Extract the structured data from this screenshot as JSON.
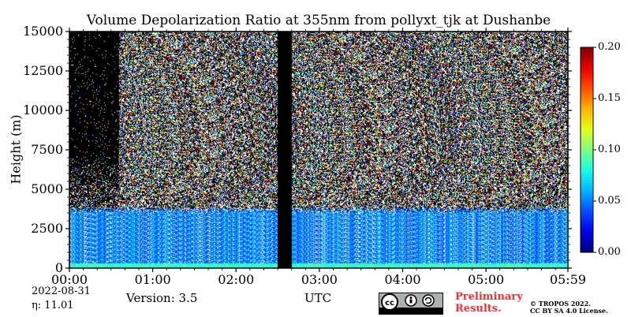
{
  "chart_data": {
    "type": "heatmap",
    "title": "Volume Depolarization Ratio at 355nm from pollyxt_tjk at Dushanbe",
    "ylabel": "Height (m)",
    "xlabel": "UTC",
    "ylim": [
      0,
      15000
    ],
    "yticks": [
      "0",
      "2500",
      "5000",
      "7500",
      "10000",
      "12500",
      "15000"
    ],
    "ytick_values": [
      0,
      2500,
      5000,
      7500,
      10000,
      12500,
      15000
    ],
    "xtick_labels": [
      "00:00",
      "01:00",
      "02:00",
      "03:00",
      "04:00",
      "05:00",
      "05:59"
    ],
    "xtick_values_hours": [
      0,
      1,
      2,
      3,
      4,
      5,
      5.983
    ],
    "xlim_hours": [
      0,
      5.983
    ],
    "colorbar": {
      "range": [
        0.0,
        0.2
      ],
      "ticks": [
        "0.00",
        "0.05",
        "0.10",
        "0.15",
        "0.20"
      ],
      "tick_values": [
        0.0,
        0.05,
        0.1,
        0.15,
        0.2
      ],
      "colormap": "jet"
    },
    "features": {
      "aerosol_layer_top_m": 3500,
      "aerosol_layer_depol": 0.05,
      "near_surface_layer_top_m": 300,
      "no_data_gap_hours": [
        2.5,
        2.67
      ],
      "low_signal_region_hours": [
        0,
        0.6
      ]
    },
    "grid": false
  },
  "footer": {
    "date": "2022-08-31",
    "eta": "η:  11.01",
    "version": "Version: 3.5",
    "prelim_line1": "Preliminary",
    "prelim_line2": "Results.",
    "copyright_line1": "© TROPOS 2022.",
    "copyright_line2": "CC BY SA 4.0 License.",
    "license_icon": "cc-by-sa-badge"
  }
}
